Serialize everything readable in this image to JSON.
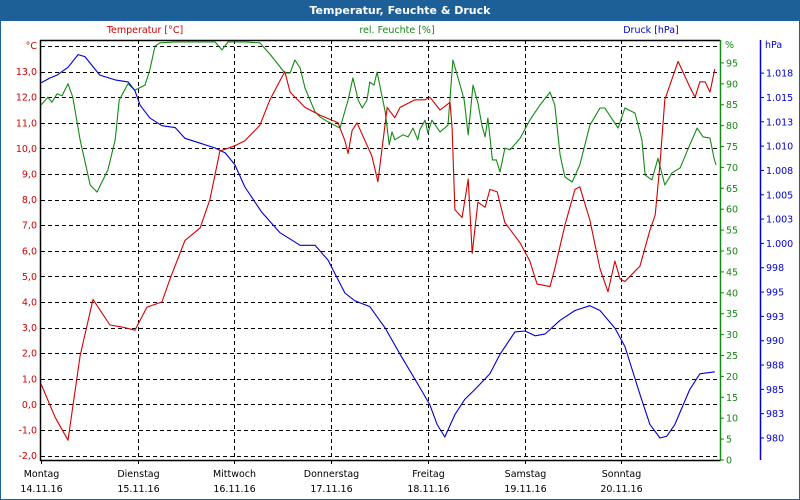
{
  "window": {
    "title": "Temperatur, Feuchte & Druck"
  },
  "colors": {
    "temperature": "#d40000",
    "humidity": "#138a13",
    "pressure": "#0000d0",
    "title_bar": "#1d6099"
  },
  "chart_data": {
    "type": "line",
    "title": "Temperatur, Feuchte & Druck",
    "legend": [
      "Temperatur [°C]",
      "rel. Feuchte [%]",
      "Druck [hPa]"
    ],
    "legend_placement": "top",
    "xlabel": "",
    "x_unit": "hours since 14.11.16 00:00",
    "xlim": [
      0,
      168
    ],
    "x_ticks": [
      {
        "hour": 0,
        "day": "Montag",
        "date": "14.11.16"
      },
      {
        "hour": 24,
        "day": "Dienstag",
        "date": "15.11.16"
      },
      {
        "hour": 48,
        "day": "Mittwoch",
        "date": "16.11.16"
      },
      {
        "hour": 72,
        "day": "Donnerstag",
        "date": "17.11.16"
      },
      {
        "hour": 96,
        "day": "Freitag",
        "date": "18.11.16"
      },
      {
        "hour": 120,
        "day": "Samstag",
        "date": "19.11.16"
      },
      {
        "hour": 144,
        "day": "Sonntag",
        "date": "20.11.16"
      }
    ],
    "grid": true,
    "axes": {
      "temperature": {
        "unit_label": "°C",
        "ylim": [
          -2.2,
          14.2
        ],
        "ticks": [
          13,
          12,
          11,
          10,
          9,
          8,
          7,
          6,
          5,
          4,
          3,
          2,
          1,
          0,
          -1,
          -2
        ],
        "tick_labels": [
          "13,0",
          "12,0",
          "11,0",
          "10,0",
          "9,0",
          "8,0",
          "7,0",
          "6,0",
          "5,0",
          "4,0",
          "3,0",
          "2,0",
          "1,0",
          "0,0",
          "-1,0",
          "-2,0"
        ]
      },
      "humidity": {
        "unit_label": "%",
        "ylim": [
          0,
          100
        ],
        "ticks": [
          95,
          90,
          85,
          80,
          75,
          70,
          65,
          60,
          55,
          50,
          45,
          40,
          35,
          30,
          25,
          20,
          15,
          10,
          5,
          0
        ],
        "tick_labels": [
          "95",
          "90",
          "85",
          "80",
          "75",
          "70",
          "65",
          "60",
          "55",
          "50",
          "45",
          "40",
          "35",
          "30",
          "25",
          "20",
          "15",
          "10",
          "5",
          "0"
        ]
      },
      "pressure": {
        "unit_label": "hPa",
        "ylim": [
          977.7,
          1021.4
        ],
        "ticks": [
          1017.5,
          1015,
          1012.5,
          1010,
          1007.5,
          1005,
          1002.5,
          1000,
          997.5,
          995,
          992.5,
          990,
          987.5,
          985,
          982.5,
          980
        ],
        "tick_labels": [
          "1.018",
          "1.015",
          "1.013",
          "1.010",
          "1.008",
          "1.005",
          "1.003",
          "1.000",
          "998",
          "995",
          "993",
          "990",
          "988",
          "985",
          "983",
          "980"
        ]
      }
    },
    "series": [
      {
        "name": "Temperatur [°C]",
        "axis": "temperature",
        "x": [
          0,
          3.5,
          6.7,
          9.7,
          12.9,
          17.1,
          20.8,
          23.3,
          26.3,
          30,
          32,
          35.7,
          39.5,
          41.9,
          44.4,
          48.1,
          50.6,
          54.3,
          56.8,
          60.5,
          61.8,
          65.5,
          69.2,
          73.7,
          75.4,
          76.2,
          77.2,
          78.4,
          80.4,
          82.1,
          83.6,
          85.9,
          87.8,
          89.1,
          92.8,
          95.3,
          96.5,
          99,
          101.5,
          102,
          102.7,
          104.5,
          106,
          107,
          108.4,
          110.2,
          111.4,
          113.2,
          115.1,
          118.9,
          121.3,
          123.1,
          126.3,
          127.5,
          130,
          132.5,
          133.7,
          136.2,
          138.7,
          140.7,
          142.4,
          143.7,
          144.9,
          148.6,
          151.1,
          152.4,
          153.6,
          154.8,
          156.1,
          158.1,
          161,
          162.3,
          163.5,
          164.8,
          166,
          167.2
        ],
        "values": [
          0.8,
          -0.5,
          -1.4,
          1.9,
          4.1,
          3.1,
          3.0,
          2.9,
          3.8,
          4.0,
          4.9,
          6.4,
          6.9,
          8.0,
          9.9,
          10.1,
          10.3,
          10.9,
          11.9,
          13.0,
          12.2,
          11.6,
          11.3,
          11.0,
          10.3,
          9.8,
          10.7,
          11.0,
          10.3,
          9.7,
          8.7,
          11.6,
          11.2,
          11.6,
          11.9,
          11.9,
          12.0,
          11.5,
          11.8,
          10.8,
          7.6,
          7.3,
          8.8,
          5.9,
          7.9,
          7.7,
          8.4,
          8.3,
          7.1,
          6.3,
          5.6,
          4.7,
          4.6,
          5.3,
          7.0,
          8.4,
          8.5,
          7.2,
          5.3,
          4.4,
          5.6,
          4.9,
          4.8,
          5.4,
          6.8,
          7.4,
          9.4,
          11.9,
          12.5,
          13.4,
          12.4,
          12.0,
          12.6,
          12.6,
          12.2,
          13.1
        ]
      },
      {
        "name": "rel. Feuchte [%]",
        "axis": "humidity",
        "x": [
          0,
          1.7,
          2.7,
          4,
          5.2,
          6.7,
          7.9,
          9.7,
          12.2,
          13.9,
          16.6,
          18.4,
          19.4,
          21.6,
          23.3,
          25.8,
          27,
          28.3,
          29.5,
          33.3,
          37,
          39.5,
          43.2,
          44.9,
          46.4,
          50.6,
          54.3,
          56.8,
          60.5,
          61.8,
          63,
          64.3,
          65.5,
          68,
          69.2,
          71.2,
          74.2,
          76.2,
          77.4,
          78.7,
          79.7,
          80.9,
          81.6,
          82.6,
          83.4,
          85.4,
          86.4,
          87.1,
          87.8,
          89.8,
          91.1,
          92.3,
          93.5,
          94,
          95.3,
          96,
          97,
          99,
          101,
          102.2,
          104,
          105,
          106,
          107.2,
          108.4,
          109.4,
          110.2,
          110.9,
          112,
          113,
          113.9,
          115.1,
          116.4,
          118.9,
          121.3,
          123.8,
          126.3,
          127.5,
          128.8,
          130,
          131.8,
          133.7,
          136.2,
          138.7,
          139.9,
          143.2,
          144.9,
          147.4,
          149.1,
          149.9,
          151.6,
          153.1,
          154.8,
          156.6,
          158.6,
          161,
          162.8,
          164.3,
          166,
          167,
          167.5
        ],
        "values": [
          84.9,
          86.8,
          85.6,
          87.6,
          87.1,
          90.0,
          86.8,
          76.6,
          65.8,
          64.1,
          69.4,
          76.6,
          86.1,
          90.0,
          88.5,
          89.7,
          93.3,
          99.0,
          99.8,
          100,
          100,
          100,
          100,
          98.1,
          100,
          100,
          99.8,
          97.1,
          92.6,
          92.6,
          95.7,
          93.8,
          89.0,
          83.3,
          82.1,
          80.9,
          79.4,
          86.1,
          91.4,
          86.1,
          84.2,
          86.1,
          90.4,
          89.7,
          92.8,
          83.3,
          75.4,
          78.5,
          76.6,
          77.8,
          77.3,
          79.4,
          76.6,
          79.0,
          81.3,
          78.2,
          81.3,
          78.5,
          80.1,
          95.7,
          89.7,
          86.1,
          77.8,
          89.7,
          85.4,
          80.1,
          77.3,
          81.8,
          71.8,
          71.8,
          68.9,
          74.6,
          74.2,
          77.0,
          81.3,
          84.9,
          88.0,
          84.9,
          73.0,
          67.7,
          66.5,
          70.6,
          80.1,
          84.2,
          84.2,
          79.4,
          84.2,
          83.0,
          76.6,
          68.2,
          67.0,
          72.2,
          65.8,
          68.7,
          69.9,
          75.4,
          79.4,
          77.3,
          77.0,
          72.2,
          70.6
        ]
      },
      {
        "name": "Druck [hPa]",
        "axis": "pressure",
        "x": [
          0,
          2.2,
          4,
          6.7,
          9.2,
          10.9,
          14.6,
          18.4,
          21.6,
          23.3,
          24.6,
          27,
          30,
          33.3,
          35.7,
          39.5,
          43.2,
          45.7,
          48.1,
          50.6,
          54.8,
          59.3,
          64.3,
          68,
          71.2,
          75.4,
          77.9,
          81.6,
          85.4,
          89.1,
          94,
          96.5,
          98.3,
          100.2,
          102.7,
          105.2,
          107.7,
          111.4,
          113.9,
          117.6,
          120.1,
          122.6,
          125.1,
          128.8,
          132.5,
          136.2,
          138.7,
          142.4,
          144.9,
          148.6,
          151.1,
          153.6,
          155.3,
          157.3,
          161,
          163.5,
          167.2
        ],
        "values": [
          1016.5,
          1017.0,
          1017.3,
          1018.1,
          1019.4,
          1019.2,
          1017.3,
          1016.8,
          1016.6,
          1015.7,
          1014.2,
          1012.9,
          1012.1,
          1011.9,
          1010.8,
          1010.3,
          1009.8,
          1009.3,
          1008.1,
          1005.8,
          1003.2,
          1001.1,
          999.8,
          999.8,
          998.3,
          994.9,
          994.1,
          993.5,
          991.3,
          988.6,
          985.2,
          983.4,
          981.4,
          980.1,
          982.4,
          984.0,
          985.0,
          986.6,
          988.6,
          990.9,
          991.0,
          990.5,
          990.7,
          992.1,
          993.1,
          993.6,
          993.1,
          991.3,
          989.4,
          984.5,
          981.4,
          980.0,
          980.2,
          981.4,
          985.0,
          986.6,
          986.8
        ]
      }
    ]
  }
}
